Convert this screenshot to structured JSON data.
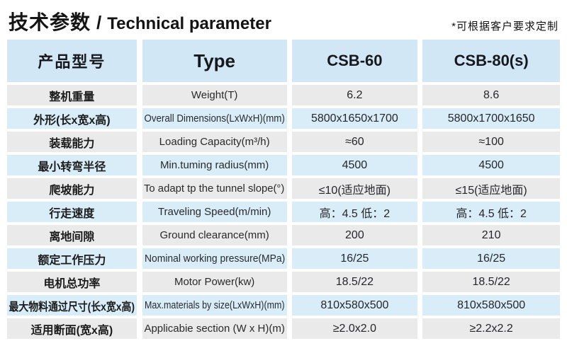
{
  "page": {
    "title_cn": "技术参数",
    "title_divider": "/",
    "title_en": "Technical parameter",
    "note": "*可根据客户要求定制"
  },
  "colors": {
    "header_bg": "#d2e7f5",
    "row_blue_bg": "#d9edf9",
    "row_gray_bg": "#eaeaea",
    "text_dark": "#1b1b1b"
  },
  "table": {
    "header": {
      "model_cn": "产品型号",
      "type": "Type",
      "csb60": "CSB-60",
      "csb80": "CSB-80(s)"
    },
    "rows": [
      {
        "cn": "整机重量",
        "en": "Weight(T)",
        "csb60": "6.2",
        "csb80": "8.6"
      },
      {
        "cn": "外形(长x宽x高)",
        "en": "Overall Dimensions(LxWxH)(mm)",
        "csb60": "5800x1650x1700",
        "csb80": "5800x1700x1650"
      },
      {
        "cn": "装载能力",
        "en": "Loading Capacity(m³/h)",
        "csb60": "≈60",
        "csb80": "≈100"
      },
      {
        "cn": "最小转弯半径",
        "en": "Min.tuming radius(mm)",
        "csb60": "4500",
        "csb80": "4500"
      },
      {
        "cn": "爬坡能力",
        "en": "To adapt tp the tunnel slope(°)",
        "csb60": "≤10(适应地面)",
        "csb80": "≤15(适应地面)"
      },
      {
        "cn": "行走速度",
        "en": "Traveling Speed(m/min)",
        "csb60": "高：4.5 低：2",
        "csb80": "高：4.5 低：2"
      },
      {
        "cn": "离地间隙",
        "en": "Ground clearance(mm)",
        "csb60": "200",
        "csb80": "210"
      },
      {
        "cn": "额定工作压力",
        "en": "Nominal working pressure(MPa)",
        "csb60": "16/25",
        "csb80": "16/25"
      },
      {
        "cn": "电机总功率",
        "en": "Motor Power(kw)",
        "csb60": "18.5/22",
        "csb80": "18.5/22"
      },
      {
        "cn": "最大物料通过尺寸(长x宽x高)",
        "en": "Max.materials by size(LxWxH)(mm)",
        "csb60": "810x580x500",
        "csb80": "810x580x500"
      },
      {
        "cn": "适用断面(宽x高)",
        "en": "Applicabie section (W x H)(m)",
        "csb60": "≥2.0x2.0",
        "csb80": "≥2.2x2.2"
      }
    ]
  }
}
